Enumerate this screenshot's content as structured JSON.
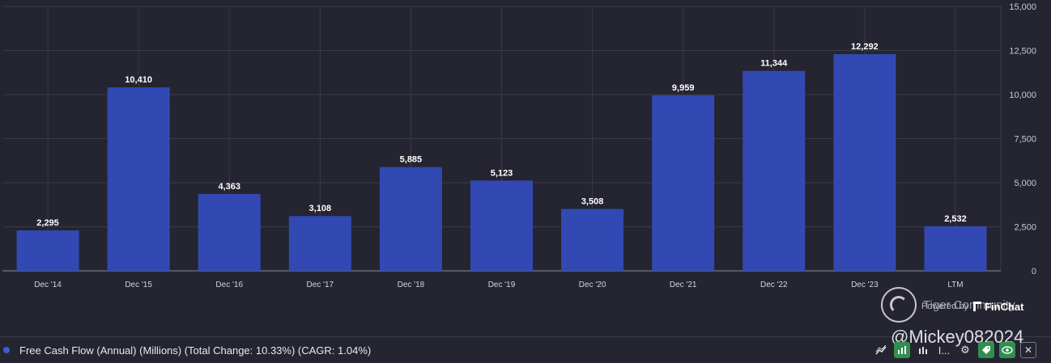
{
  "chart_data": {
    "type": "bar",
    "categories": [
      "Dec '14",
      "Dec '15",
      "Dec '16",
      "Dec '17",
      "Dec '18",
      "Dec '19",
      "Dec '20",
      "Dec '21",
      "Dec '22",
      "Dec '23",
      "LTM"
    ],
    "values": [
      2295,
      10410,
      4363,
      3108,
      5885,
      5123,
      3508,
      9959,
      11344,
      12292,
      2532
    ],
    "value_labels": [
      "2,295",
      "10,410",
      "4,363",
      "3,108",
      "5,885",
      "5,123",
      "3,508",
      "9,959",
      "11,344",
      "12,292",
      "2,532"
    ],
    "y_ticks": [
      0,
      2500,
      5000,
      7500,
      10000,
      12500,
      15000
    ],
    "y_tick_labels": [
      "0",
      "2,500",
      "5,000",
      "7,500",
      "10,000",
      "12,500",
      "15,000"
    ],
    "ylim": [
      0,
      15000
    ],
    "y_axis_side": "right",
    "grid": true,
    "bar_color": "#3249b3",
    "grid_color": "#3a3b47",
    "background": "#242530"
  },
  "legend": {
    "text": "Free Cash Flow (Annual) (Millions) (Total Change: 10.33%) (CAGR: 1.04%)",
    "color": "#3d5cd6"
  },
  "branding": {
    "powered_by": "Powered by",
    "brand": "FinChat",
    "watermark": "Tiger Community",
    "handle": "@Mickey082024"
  },
  "toolbar": {
    "icons": [
      "chart-line-icon",
      "bar-chart-icon",
      "columns-icon",
      "more-icon",
      "gear-icon",
      "tag-icon",
      "eye-icon",
      "close-icon"
    ],
    "more_label": "I..."
  }
}
